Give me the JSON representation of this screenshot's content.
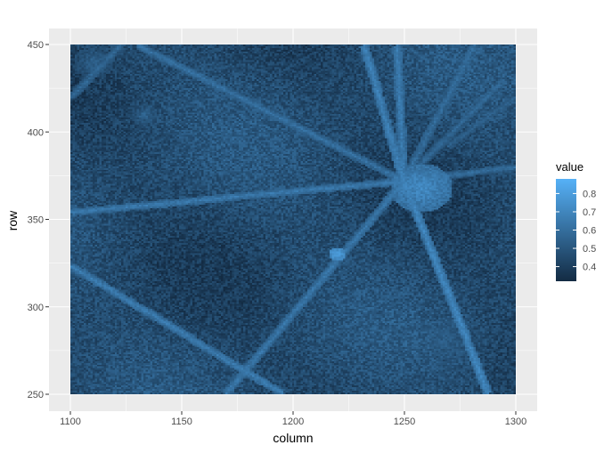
{
  "chart_data": {
    "type": "heatmap",
    "title": "",
    "xlabel": "column",
    "ylabel": "row",
    "xlim": [
      1100,
      1300
    ],
    "ylim": [
      250,
      450
    ],
    "x_ticks": [
      1100,
      1150,
      1200,
      1250,
      1300
    ],
    "y_ticks": [
      250,
      300,
      350,
      400,
      450
    ],
    "grid": true,
    "legend": {
      "title": "value",
      "placement": "right",
      "range": [
        0.32,
        0.88
      ],
      "ticks": [
        0.4,
        0.5,
        0.6,
        0.7,
        0.8
      ],
      "low_color": "#132B43",
      "high_color": "#56B1F7"
    },
    "background_value": 0.45,
    "features": [
      {
        "kind": "ray",
        "from": [
          1250,
          372
        ],
        "to": [
          1100,
          354
        ],
        "value": 0.65
      },
      {
        "kind": "ray",
        "from": [
          1250,
          372
        ],
        "to": [
          1130,
          450
        ],
        "value": 0.62
      },
      {
        "kind": "ray",
        "from": [
          1250,
          372
        ],
        "to": [
          1232,
          450
        ],
        "value": 0.68
      },
      {
        "kind": "ray",
        "from": [
          1250,
          372
        ],
        "to": [
          1247,
          450
        ],
        "value": 0.66
      },
      {
        "kind": "ray",
        "from": [
          1250,
          372
        ],
        "to": [
          1282,
          450
        ],
        "value": 0.6
      },
      {
        "kind": "ray",
        "from": [
          1250,
          372
        ],
        "to": [
          1295,
          430
        ],
        "value": 0.58
      },
      {
        "kind": "ray",
        "from": [
          1250,
          372
        ],
        "to": [
          1300,
          380
        ],
        "value": 0.6
      },
      {
        "kind": "ray",
        "from": [
          1250,
          372
        ],
        "to": [
          1288,
          250
        ],
        "value": 0.7
      },
      {
        "kind": "ray",
        "from": [
          1250,
          372
        ],
        "to": [
          1170,
          250
        ],
        "value": 0.64
      },
      {
        "kind": "ray",
        "from": [
          1100,
          323
        ],
        "to": [
          1195,
          250
        ],
        "value": 0.66
      },
      {
        "kind": "ray",
        "from": [
          1122,
          450
        ],
        "to": [
          1100,
          420
        ],
        "value": 0.58
      },
      {
        "kind": "ray",
        "from": [
          1300,
          420
        ],
        "to": [
          1270,
          392
        ],
        "value": 0.55
      },
      {
        "kind": "blob",
        "center": [
          1258,
          368
        ],
        "radius": 14,
        "value": 0.72
      },
      {
        "kind": "blob",
        "center": [
          1220,
          330
        ],
        "radius": 4,
        "value": 0.8
      },
      {
        "kind": "blob",
        "center": [
          1133,
          410
        ],
        "radius": 6,
        "value": 0.56
      },
      {
        "kind": "blob",
        "center": [
          1110,
          440
        ],
        "radius": 9,
        "value": 0.55
      },
      {
        "kind": "blob",
        "center": [
          1268,
          280
        ],
        "radius": 18,
        "value": 0.53
      }
    ]
  }
}
